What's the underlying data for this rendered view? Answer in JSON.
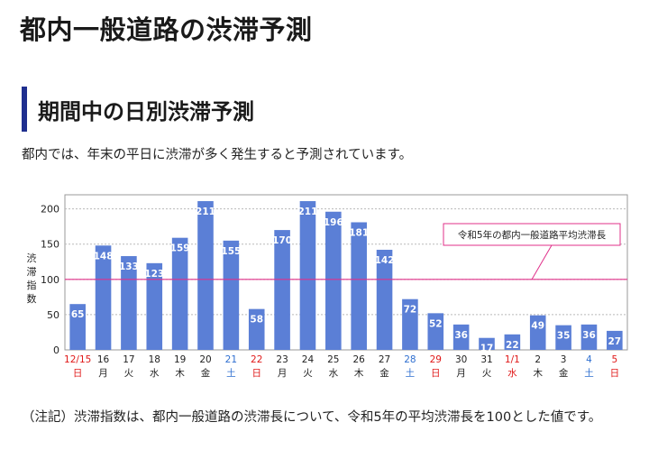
{
  "page": {
    "title": "都内一般道路の渋滞予測",
    "section_title": "期間中の日別渋滞予測",
    "intro": "都内では、年末の平日に渋滞が多く発生すると予測されています。",
    "note": "（注記）渋滞指数は、都内一般道路の渋滞長について、令和5年の平均渋滞長を100とした値です。"
  },
  "chart_data": {
    "type": "bar",
    "ylabel": "渋滞指数",
    "ylim": [
      0,
      220
    ],
    "yticks": [
      0,
      50,
      100,
      150,
      200
    ],
    "grid": true,
    "bar_color": "#5b7fd6",
    "reference_line": {
      "value": 100,
      "label": "令和5年の都内一般道路平均渋滞長",
      "color": "#e0308a"
    },
    "categories": [
      {
        "date": "12/15",
        "weekday": "日",
        "kind": "holiday"
      },
      {
        "date": "16",
        "weekday": "月",
        "kind": "weekday"
      },
      {
        "date": "17",
        "weekday": "火",
        "kind": "weekday"
      },
      {
        "date": "18",
        "weekday": "水",
        "kind": "weekday"
      },
      {
        "date": "19",
        "weekday": "木",
        "kind": "weekday"
      },
      {
        "date": "20",
        "weekday": "金",
        "kind": "weekday"
      },
      {
        "date": "21",
        "weekday": "土",
        "kind": "saturday"
      },
      {
        "date": "22",
        "weekday": "日",
        "kind": "holiday"
      },
      {
        "date": "23",
        "weekday": "月",
        "kind": "weekday"
      },
      {
        "date": "24",
        "weekday": "火",
        "kind": "weekday"
      },
      {
        "date": "25",
        "weekday": "水",
        "kind": "weekday"
      },
      {
        "date": "26",
        "weekday": "木",
        "kind": "weekday"
      },
      {
        "date": "27",
        "weekday": "金",
        "kind": "weekday"
      },
      {
        "date": "28",
        "weekday": "土",
        "kind": "saturday"
      },
      {
        "date": "29",
        "weekday": "日",
        "kind": "holiday"
      },
      {
        "date": "30",
        "weekday": "月",
        "kind": "weekday"
      },
      {
        "date": "31",
        "weekday": "火",
        "kind": "weekday"
      },
      {
        "date": "1/1",
        "weekday": "水",
        "kind": "holiday"
      },
      {
        "date": "2",
        "weekday": "木",
        "kind": "weekday"
      },
      {
        "date": "3",
        "weekday": "金",
        "kind": "weekday"
      },
      {
        "date": "4",
        "weekday": "土",
        "kind": "saturday"
      },
      {
        "date": "5",
        "weekday": "日",
        "kind": "holiday"
      }
    ],
    "values": [
      65,
      148,
      133,
      123,
      159,
      211,
      155,
      58,
      170,
      211,
      196,
      181,
      142,
      72,
      52,
      36,
      17,
      22,
      49,
      35,
      36,
      27
    ],
    "label_colors": {
      "weekday": "#222222",
      "saturday": "#2f6fd0",
      "holiday": "#e01818"
    }
  }
}
